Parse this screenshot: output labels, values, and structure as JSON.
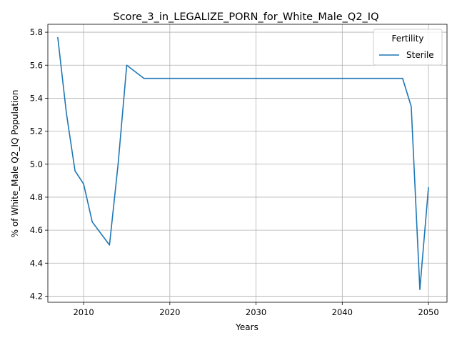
{
  "chart_data": {
    "type": "line",
    "title": "Score_3_in_LEGALIZE_PORN_for_White_Male_Q2_IQ",
    "xlabel": "Years",
    "ylabel": "% of White_Male Q2_IQ Population",
    "xlim": [
      2005.85,
      2052.15
    ],
    "ylim": [
      4.163,
      5.848
    ],
    "xticks": [
      2010,
      2020,
      2030,
      2040,
      2050
    ],
    "yticks": [
      4.2,
      4.4,
      4.6,
      4.8,
      5.0,
      5.2,
      5.4,
      5.6,
      5.8
    ],
    "xtick_labels": [
      "2010",
      "2020",
      "2030",
      "2040",
      "2050"
    ],
    "ytick_labels": [
      "4.2",
      "4.4",
      "4.6",
      "4.8",
      "5.0",
      "5.2",
      "5.4",
      "5.6",
      "5.8"
    ],
    "grid": true,
    "legend": {
      "title": "Fertility",
      "position": "upper right"
    },
    "series": [
      {
        "name": "Sterile",
        "color": "#1f77b4",
        "x": [
          2007,
          2008,
          2009,
          2010,
          2011,
          2012,
          2013,
          2014,
          2015,
          2016,
          2017,
          2018,
          2019,
          2020,
          2021,
          2022,
          2023,
          2024,
          2025,
          2026,
          2027,
          2028,
          2029,
          2030,
          2031,
          2032,
          2033,
          2034,
          2035,
          2036,
          2037,
          2038,
          2039,
          2040,
          2041,
          2042,
          2043,
          2044,
          2045,
          2046,
          2047,
          2048,
          2049,
          2050
        ],
        "y": [
          5.77,
          5.31,
          4.96,
          4.88,
          4.65,
          4.58,
          4.51,
          5.0,
          5.6,
          5.56,
          5.52,
          5.52,
          5.52,
          5.52,
          5.52,
          5.52,
          5.52,
          5.52,
          5.52,
          5.52,
          5.52,
          5.52,
          5.52,
          5.52,
          5.52,
          5.52,
          5.52,
          5.52,
          5.52,
          5.52,
          5.52,
          5.52,
          5.52,
          5.52,
          5.52,
          5.52,
          5.52,
          5.52,
          5.52,
          5.52,
          5.52,
          5.35,
          4.24,
          4.86
        ]
      }
    ]
  }
}
